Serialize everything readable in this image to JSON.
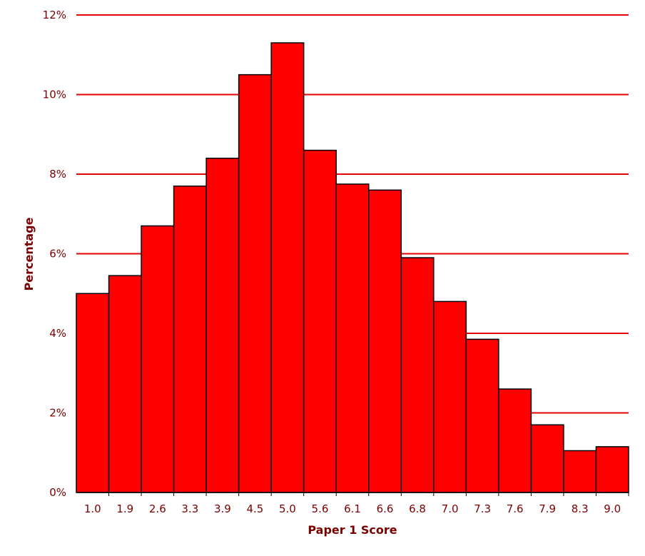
{
  "colors": {
    "bar_fill": "#ff0000",
    "bar_stroke": "#000000",
    "gridline": "#e60000",
    "axis_text": "#7a0000"
  },
  "chart_data": {
    "type": "bar",
    "categories": [
      "1.0",
      "1.9",
      "2.6",
      "3.3",
      "3.9",
      "4.5",
      "5.0",
      "5.6",
      "6.1",
      "6.6",
      "6.8",
      "7.0",
      "7.3",
      "7.6",
      "7.9",
      "8.3",
      "9.0"
    ],
    "values": [
      5.0,
      5.45,
      6.7,
      7.7,
      8.4,
      10.5,
      11.3,
      8.6,
      7.75,
      7.6,
      5.9,
      4.8,
      3.85,
      2.6,
      1.7,
      1.05,
      1.15
    ],
    "value_unit": "%",
    "xlabel": "Paper 1 Score",
    "ylabel": "Percentage",
    "ylim": [
      0,
      12
    ],
    "yticks": [
      "0%",
      "2%",
      "4%",
      "6%",
      "8%",
      "10%",
      "12%"
    ],
    "ytick_values": [
      0,
      2,
      4,
      6,
      8,
      10,
      12
    ],
    "grid": true,
    "bar_gap": false
  }
}
